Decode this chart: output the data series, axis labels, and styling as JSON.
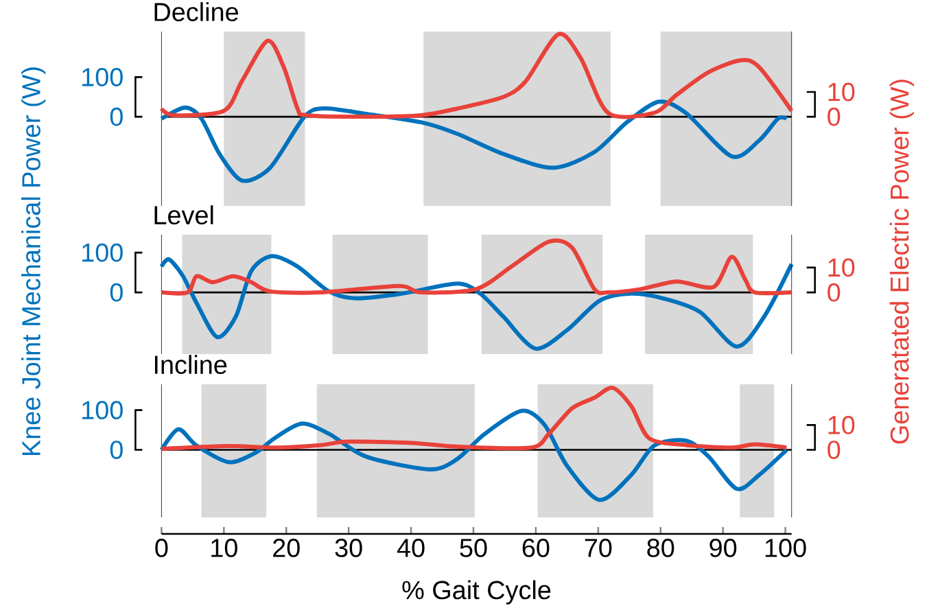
{
  "chart_data": [
    {
      "type": "line",
      "title": "Decline",
      "xlim": [
        0,
        101
      ],
      "ylim": [
        -225,
        215
      ],
      "yticks": [
        0,
        100
      ],
      "y2lim": [
        -36,
        34.4
      ],
      "y2ticks": [
        0,
        10
      ],
      "tick_labels": "y",
      "ref_lines": [
        {
          "axis": "y",
          "value": 0,
          "color": "#000000"
        }
      ],
      "bands": [
        {
          "axis": "x",
          "from": 10,
          "to": 23,
          "color": "#d9d9d9"
        },
        {
          "axis": "x",
          "from": 42,
          "to": 72,
          "color": "#d9d9d9"
        },
        {
          "axis": "x",
          "from": 80,
          "to": 101,
          "color": "#d9d9d9"
        }
      ],
      "series": [
        {
          "color": "#0072bd",
          "x": [
            0,
            3.8,
            6.4,
            9.3,
            12.9,
            17.4,
            22.9,
            26.2,
            32.8,
            41.6,
            47.4,
            54.8,
            62.8,
            69.4,
            74.6,
            79.7,
            84.1,
            91.4,
            95.8,
            98.8,
            100.2
          ],
          "values": [
            -5,
            23,
            -5,
            -94,
            -161,
            -129,
            0,
            21,
            7,
            -14,
            -43,
            -94,
            -129,
            -89,
            -14,
            38,
            9,
            -100,
            -60,
            -5,
            -5
          ]
        },
        {
          "color": "#e8423a",
          "axis": "y2",
          "x": [
            0,
            2,
            10,
            12.9,
            17,
            19.6,
            21.8,
            23.2,
            32.8,
            41.6,
            47.4,
            54.8,
            58.4,
            63.6,
            67.2,
            71.6,
            78.9,
            82.6,
            87.7,
            92.9,
            95.8,
            101
          ],
          "values": [
            3.3,
            0.6,
            2.4,
            14.4,
            30.7,
            20,
            3.3,
            0.6,
            0,
            0.6,
            3.3,
            8,
            14.4,
            33.3,
            23.7,
            1.5,
            1.5,
            8.9,
            18,
            22.8,
            20,
            2.4
          ]
        }
      ]
    },
    {
      "type": "line",
      "title": "Level",
      "ylabel": "Knee Joint Mechanical Power (W)",
      "y2label": "Generatated Electric Power (W)",
      "xlim": [
        0,
        101
      ],
      "ylim": [
        -155,
        145
      ],
      "yticks": [
        0,
        100
      ],
      "y2lim": [
        -24.8,
        23.2
      ],
      "y2ticks": [
        0,
        10
      ],
      "tick_labels": "y",
      "ref_lines": [
        {
          "axis": "y",
          "value": 0,
          "color": "#000000"
        }
      ],
      "bands": [
        {
          "axis": "x",
          "from": 3.3,
          "to": 17.6,
          "color": "#d9d9d9"
        },
        {
          "axis": "x",
          "from": 27.4,
          "to": 42.7,
          "color": "#d9d9d9"
        },
        {
          "axis": "x",
          "from": 51.3,
          "to": 70.7,
          "color": "#d9d9d9"
        },
        {
          "axis": "x",
          "from": 77.5,
          "to": 94.8,
          "color": "#d9d9d9"
        }
      ],
      "series": [
        {
          "color": "#0072bd",
          "x": [
            0,
            1.2,
            3.4,
            5.6,
            8.9,
            11.9,
            14.4,
            17.7,
            21.8,
            26.9,
            31.3,
            38.6,
            47.4,
            51.1,
            54.8,
            59.9,
            65,
            70.2,
            75.3,
            80.4,
            86.3,
            92.2,
            96.6,
            101
          ],
          "values": [
            65,
            83,
            42,
            -26,
            -112,
            -61,
            54,
            91,
            65,
            2,
            -15,
            -3,
            22,
            -3,
            -61,
            -141,
            -95,
            -21,
            -3,
            -15,
            -49,
            -136,
            -61,
            71
          ]
        },
        {
          "color": "#e8423a",
          "axis": "y2",
          "x": [
            0,
            4.2,
            5.6,
            8.2,
            11.5,
            14.4,
            17.4,
            25.5,
            38,
            41.6,
            50.4,
            56.2,
            62.1,
            65.8,
            69.4,
            71.6,
            76.8,
            82.6,
            88.5,
            91.4,
            93.6,
            95.1,
            101
          ],
          "values": [
            0,
            0,
            6.5,
            4.1,
            6.5,
            4.1,
            0.4,
            0,
            2.6,
            0,
            1.3,
            10.6,
            20.4,
            18,
            1.3,
            0,
            1.3,
            4.4,
            2.2,
            14.3,
            5,
            0,
            0
          ]
        }
      ]
    },
    {
      "type": "line",
      "title": "Incline",
      "xlabel": "% Gait Cycle",
      "xlim": [
        0,
        101
      ],
      "xticks": [
        0,
        10,
        20,
        30,
        40,
        50,
        60,
        70,
        80,
        90,
        100
      ],
      "ylim": [
        -170,
        165
      ],
      "yticks": [
        0,
        100
      ],
      "y2lim": [
        -27.2,
        26.4
      ],
      "y2ticks": [
        0,
        10
      ],
      "ref_lines": [
        {
          "axis": "y",
          "value": 0,
          "color": "#000000"
        }
      ],
      "bands": [
        {
          "axis": "x",
          "from": 6.4,
          "to": 16.8,
          "color": "#d9d9d9"
        },
        {
          "axis": "x",
          "from": 24.9,
          "to": 50.2,
          "color": "#d9d9d9"
        },
        {
          "axis": "x",
          "from": 60.3,
          "to": 78.8,
          "color": "#d9d9d9"
        },
        {
          "axis": "x",
          "from": 92.7,
          "to": 98.2,
          "color": "#d9d9d9"
        }
      ],
      "series": [
        {
          "color": "#0072bd",
          "x": [
            0,
            2.7,
            5.6,
            10.8,
            15.2,
            18.1,
            22.5,
            26.9,
            32.8,
            43,
            47.4,
            51.8,
            57.7,
            61.4,
            65,
            70.2,
            75.3,
            79,
            84.1,
            87.7,
            92.2,
            95.8,
            100.2
          ],
          "values": [
            0,
            52,
            11,
            -31,
            -6,
            29,
            66,
            40,
            -17,
            -49,
            -23,
            40,
            98,
            63,
            -40,
            -126,
            -63,
            11,
            23,
            -17,
            -98,
            -63,
            0
          ]
        },
        {
          "color": "#e8423a",
          "axis": "y2",
          "x": [
            0,
            10.8,
            18.1,
            25.5,
            29.9,
            40.1,
            47.4,
            59.2,
            62.1,
            65.8,
            69.4,
            72.3,
            75.3,
            78.2,
            84.1,
            91.4,
            95.1,
            100.2
          ],
          "values": [
            0.4,
            1.5,
            0.9,
            1.9,
            3.3,
            2.8,
            1.3,
            0.9,
            6.5,
            16.7,
            21,
            25,
            17.6,
            4.6,
            1.9,
            0.9,
            2.2,
            0.9
          ]
        }
      ]
    }
  ]
}
